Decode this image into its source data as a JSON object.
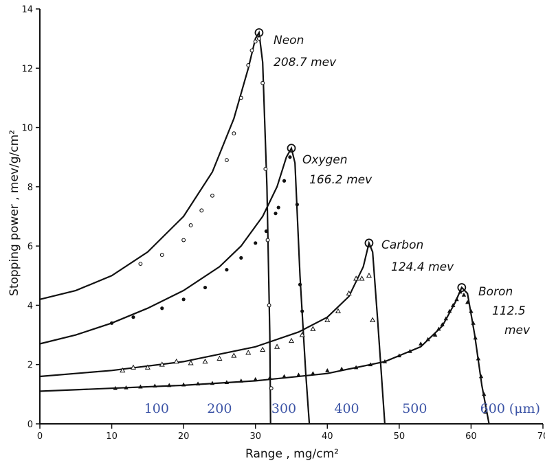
{
  "chart_data": {
    "type": "scatter",
    "xlabel": "Range , mg/cm²",
    "ylabel": "Stopping power , mev/g/cm²",
    "xlim": [
      0,
      70
    ],
    "ylim": [
      0,
      14
    ],
    "x_ticks": [
      "0",
      "10",
      "20",
      "30",
      "40",
      "50",
      "60",
      "70"
    ],
    "y_ticks": [
      "0",
      "2",
      "4",
      "6",
      "8",
      "10",
      "12",
      "14"
    ],
    "secondary_x_ticks": [
      {
        "x": 23.2,
        "label": "100"
      },
      {
        "x": 35.7,
        "label": "200"
      },
      {
        "x": 48.5,
        "label": "300"
      },
      {
        "x": 61.0,
        "label": "400"
      },
      {
        "x": 74.5,
        "label": "500"
      },
      {
        "x": 90.0,
        "label": "600"
      }
    ],
    "secondary_x_unit": "(μm)",
    "series": [
      {
        "name": "Neon",
        "energy": "208.7 mev",
        "marker": "open-circle",
        "curve": [
          [
            0,
            4.2
          ],
          [
            5,
            4.5
          ],
          [
            10,
            5.0
          ],
          [
            15,
            5.8
          ],
          [
            20,
            7.0
          ],
          [
            24,
            8.5
          ],
          [
            27,
            10.3
          ],
          [
            29,
            12.0
          ],
          [
            30,
            13.0
          ],
          [
            30.5,
            13.2
          ],
          [
            31,
            12.2
          ],
          [
            31.6,
            8.0
          ],
          [
            32,
            3.0
          ],
          [
            32.1,
            0
          ]
        ],
        "points": [
          [
            14,
            5.4
          ],
          [
            17,
            5.7
          ],
          [
            20,
            6.2
          ],
          [
            21,
            6.7
          ],
          [
            22.5,
            7.2
          ],
          [
            24,
            7.7
          ],
          [
            26,
            8.9
          ],
          [
            27,
            9.8
          ],
          [
            28,
            11.0
          ],
          [
            29,
            12.1
          ],
          [
            29.5,
            12.6
          ],
          [
            30,
            12.9
          ],
          [
            30.5,
            13.0
          ],
          [
            31,
            11.5
          ],
          [
            31.4,
            8.6
          ],
          [
            31.7,
            6.2
          ],
          [
            31.9,
            4.0
          ],
          [
            32.2,
            1.2
          ]
        ]
      },
      {
        "name": "Oxygen",
        "energy": "166.2 mev",
        "marker": "filled-circle",
        "curve": [
          [
            0,
            2.7
          ],
          [
            5,
            3.0
          ],
          [
            10,
            3.4
          ],
          [
            15,
            3.9
          ],
          [
            20,
            4.5
          ],
          [
            25,
            5.3
          ],
          [
            28,
            6.0
          ],
          [
            31,
            7.0
          ],
          [
            33,
            8.0
          ],
          [
            34.3,
            9.0
          ],
          [
            35,
            9.3
          ],
          [
            35.5,
            8.8
          ],
          [
            36.2,
            5.0
          ],
          [
            37,
            1.7
          ],
          [
            37.5,
            0
          ]
        ],
        "points": [
          [
            10,
            3.4
          ],
          [
            13,
            3.6
          ],
          [
            17,
            3.9
          ],
          [
            20,
            4.2
          ],
          [
            23,
            4.6
          ],
          [
            26,
            5.2
          ],
          [
            28,
            5.6
          ],
          [
            30,
            6.1
          ],
          [
            31.5,
            6.5
          ],
          [
            32.8,
            7.1
          ],
          [
            33.2,
            7.3
          ],
          [
            34,
            8.2
          ],
          [
            34.8,
            9.0
          ],
          [
            35.8,
            7.4
          ],
          [
            36.2,
            4.7
          ],
          [
            36.5,
            3.8
          ]
        ]
      },
      {
        "name": "Carbon",
        "energy": "124.4 mev",
        "marker": "open-triangle",
        "curve": [
          [
            0,
            1.6
          ],
          [
            10,
            1.8
          ],
          [
            20,
            2.1
          ],
          [
            30,
            2.6
          ],
          [
            36,
            3.1
          ],
          [
            40,
            3.6
          ],
          [
            43,
            4.3
          ],
          [
            45,
            5.3
          ],
          [
            45.8,
            6.1
          ],
          [
            46.3,
            5.8
          ],
          [
            47,
            3.5
          ],
          [
            48,
            0
          ]
        ],
        "points": [
          [
            11.5,
            1.8
          ],
          [
            13,
            1.9
          ],
          [
            15,
            1.9
          ],
          [
            17,
            2.0
          ],
          [
            19,
            2.1
          ],
          [
            21,
            2.05
          ],
          [
            23,
            2.1
          ],
          [
            25,
            2.2
          ],
          [
            27,
            2.3
          ],
          [
            29,
            2.4
          ],
          [
            31,
            2.5
          ],
          [
            33,
            2.6
          ],
          [
            35,
            2.8
          ],
          [
            36.5,
            3.0
          ],
          [
            38,
            3.2
          ],
          [
            40,
            3.5
          ],
          [
            41.5,
            3.8
          ],
          [
            43,
            4.4
          ],
          [
            44,
            4.9
          ],
          [
            44.8,
            4.9
          ],
          [
            45.8,
            5.0
          ],
          [
            46.3,
            3.5
          ]
        ]
      },
      {
        "name": "Boron",
        "energy": "112.5 mev",
        "marker": "filled-triangle",
        "curve": [
          [
            0,
            1.1
          ],
          [
            10,
            1.2
          ],
          [
            20,
            1.3
          ],
          [
            30,
            1.45
          ],
          [
            40,
            1.7
          ],
          [
            48,
            2.1
          ],
          [
            53,
            2.6
          ],
          [
            56,
            3.3
          ],
          [
            57.8,
            4.1
          ],
          [
            58.7,
            4.6
          ],
          [
            59.5,
            4.4
          ],
          [
            60.5,
            3.0
          ],
          [
            61.5,
            1.3
          ],
          [
            62.5,
            0
          ]
        ],
        "points": [
          [
            10.5,
            1.2
          ],
          [
            12,
            1.22
          ],
          [
            14,
            1.25
          ],
          [
            16,
            1.28
          ],
          [
            18,
            1.3
          ],
          [
            20,
            1.32
          ],
          [
            22,
            1.35
          ],
          [
            24,
            1.37
          ],
          [
            26,
            1.4
          ],
          [
            28,
            1.45
          ],
          [
            30,
            1.5
          ],
          [
            32,
            1.55
          ],
          [
            34,
            1.6
          ],
          [
            36,
            1.65
          ],
          [
            38,
            1.7
          ],
          [
            40,
            1.8
          ],
          [
            42,
            1.85
          ],
          [
            44,
            1.9
          ],
          [
            46,
            2.0
          ],
          [
            48,
            2.1
          ],
          [
            50,
            2.3
          ],
          [
            51.5,
            2.45
          ],
          [
            53,
            2.7
          ],
          [
            54,
            2.85
          ],
          [
            55,
            3.0
          ],
          [
            55.5,
            3.2
          ],
          [
            56,
            3.35
          ],
          [
            56.5,
            3.55
          ],
          [
            57,
            3.8
          ],
          [
            57.5,
            4.0
          ],
          [
            58,
            4.2
          ],
          [
            58.5,
            4.45
          ],
          [
            59,
            4.35
          ],
          [
            59.5,
            4.1
          ],
          [
            60,
            3.8
          ],
          [
            60.3,
            3.4
          ],
          [
            60.6,
            2.9
          ],
          [
            61,
            2.2
          ],
          [
            61.4,
            1.6
          ],
          [
            61.8,
            1.0
          ],
          [
            62,
            0.4
          ]
        ]
      }
    ]
  }
}
